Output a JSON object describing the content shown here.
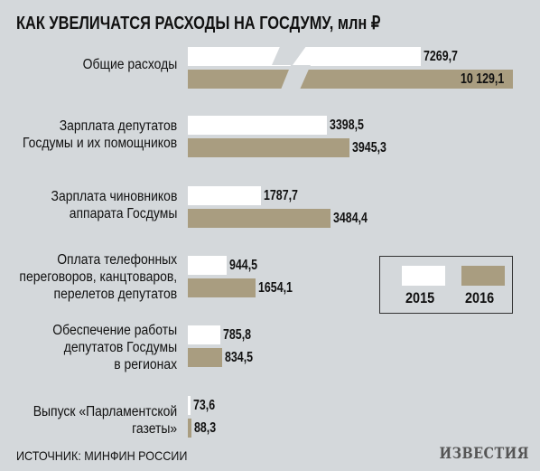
{
  "title": "КАК УВЕЛИЧАТСЯ РАСХОДЫ НА ГОСДУМУ, млн ₽",
  "source": "ИСТОЧНИК: МИНФИН РОССИИ",
  "logo": "ИЗВЕСТИЯ",
  "colors": {
    "y2015": "#ffffff",
    "y2016": "#a99d80",
    "background": "#d4d8db"
  },
  "legend": {
    "label_2015": "2015",
    "label_2016": "2016"
  },
  "chart_data": {
    "type": "bar",
    "orientation": "horizontal",
    "title": "КАК УВЕЛИЧАТСЯ РАСХОДЫ НА ГОСДУМУ, млн ₽",
    "categories": [
      "Общие расходы",
      "Зарплата депутатов Госдумы и их помощников",
      "Зарплата чиновников аппарата Госдумы",
      "Оплата телефонных переговоров, канцтоваров, перелетов депутатов",
      "Обеспечение работы депутатов Госдумы в регионах",
      "Выпуск «Парламентской газеты»"
    ],
    "category_lines": [
      [
        "Общие расходы"
      ],
      [
        "Зарплата депутатов",
        "Госдумы и их помощников"
      ],
      [
        "Зарплата чиновников",
        "аппарата Госдумы"
      ],
      [
        "Оплата телефонных",
        "переговоров, канцтоваров,",
        "перелетов депутатов"
      ],
      [
        "Обеспечение работы",
        "депутатов Госдумы",
        "в регионах"
      ],
      [
        "Выпуск «Парламентской",
        "газеты»"
      ]
    ],
    "series": [
      {
        "name": "2015",
        "values": [
          7269.7,
          3398.5,
          1787.7,
          944.5,
          785.8,
          73.6
        ],
        "labels": [
          "7269,7",
          "3398,5",
          "1787,7",
          "944,5",
          "785,8",
          "73,6"
        ]
      },
      {
        "name": "2016",
        "values": [
          10129.1,
          3945.3,
          3484.4,
          1654.1,
          834.5,
          88.3
        ],
        "labels": [
          "10 129,1",
          "3945,3",
          "3484,4",
          "1654,1",
          "834,5",
          "88,3"
        ]
      }
    ],
    "axis_break": true,
    "legend_position": "right",
    "grid": false
  }
}
